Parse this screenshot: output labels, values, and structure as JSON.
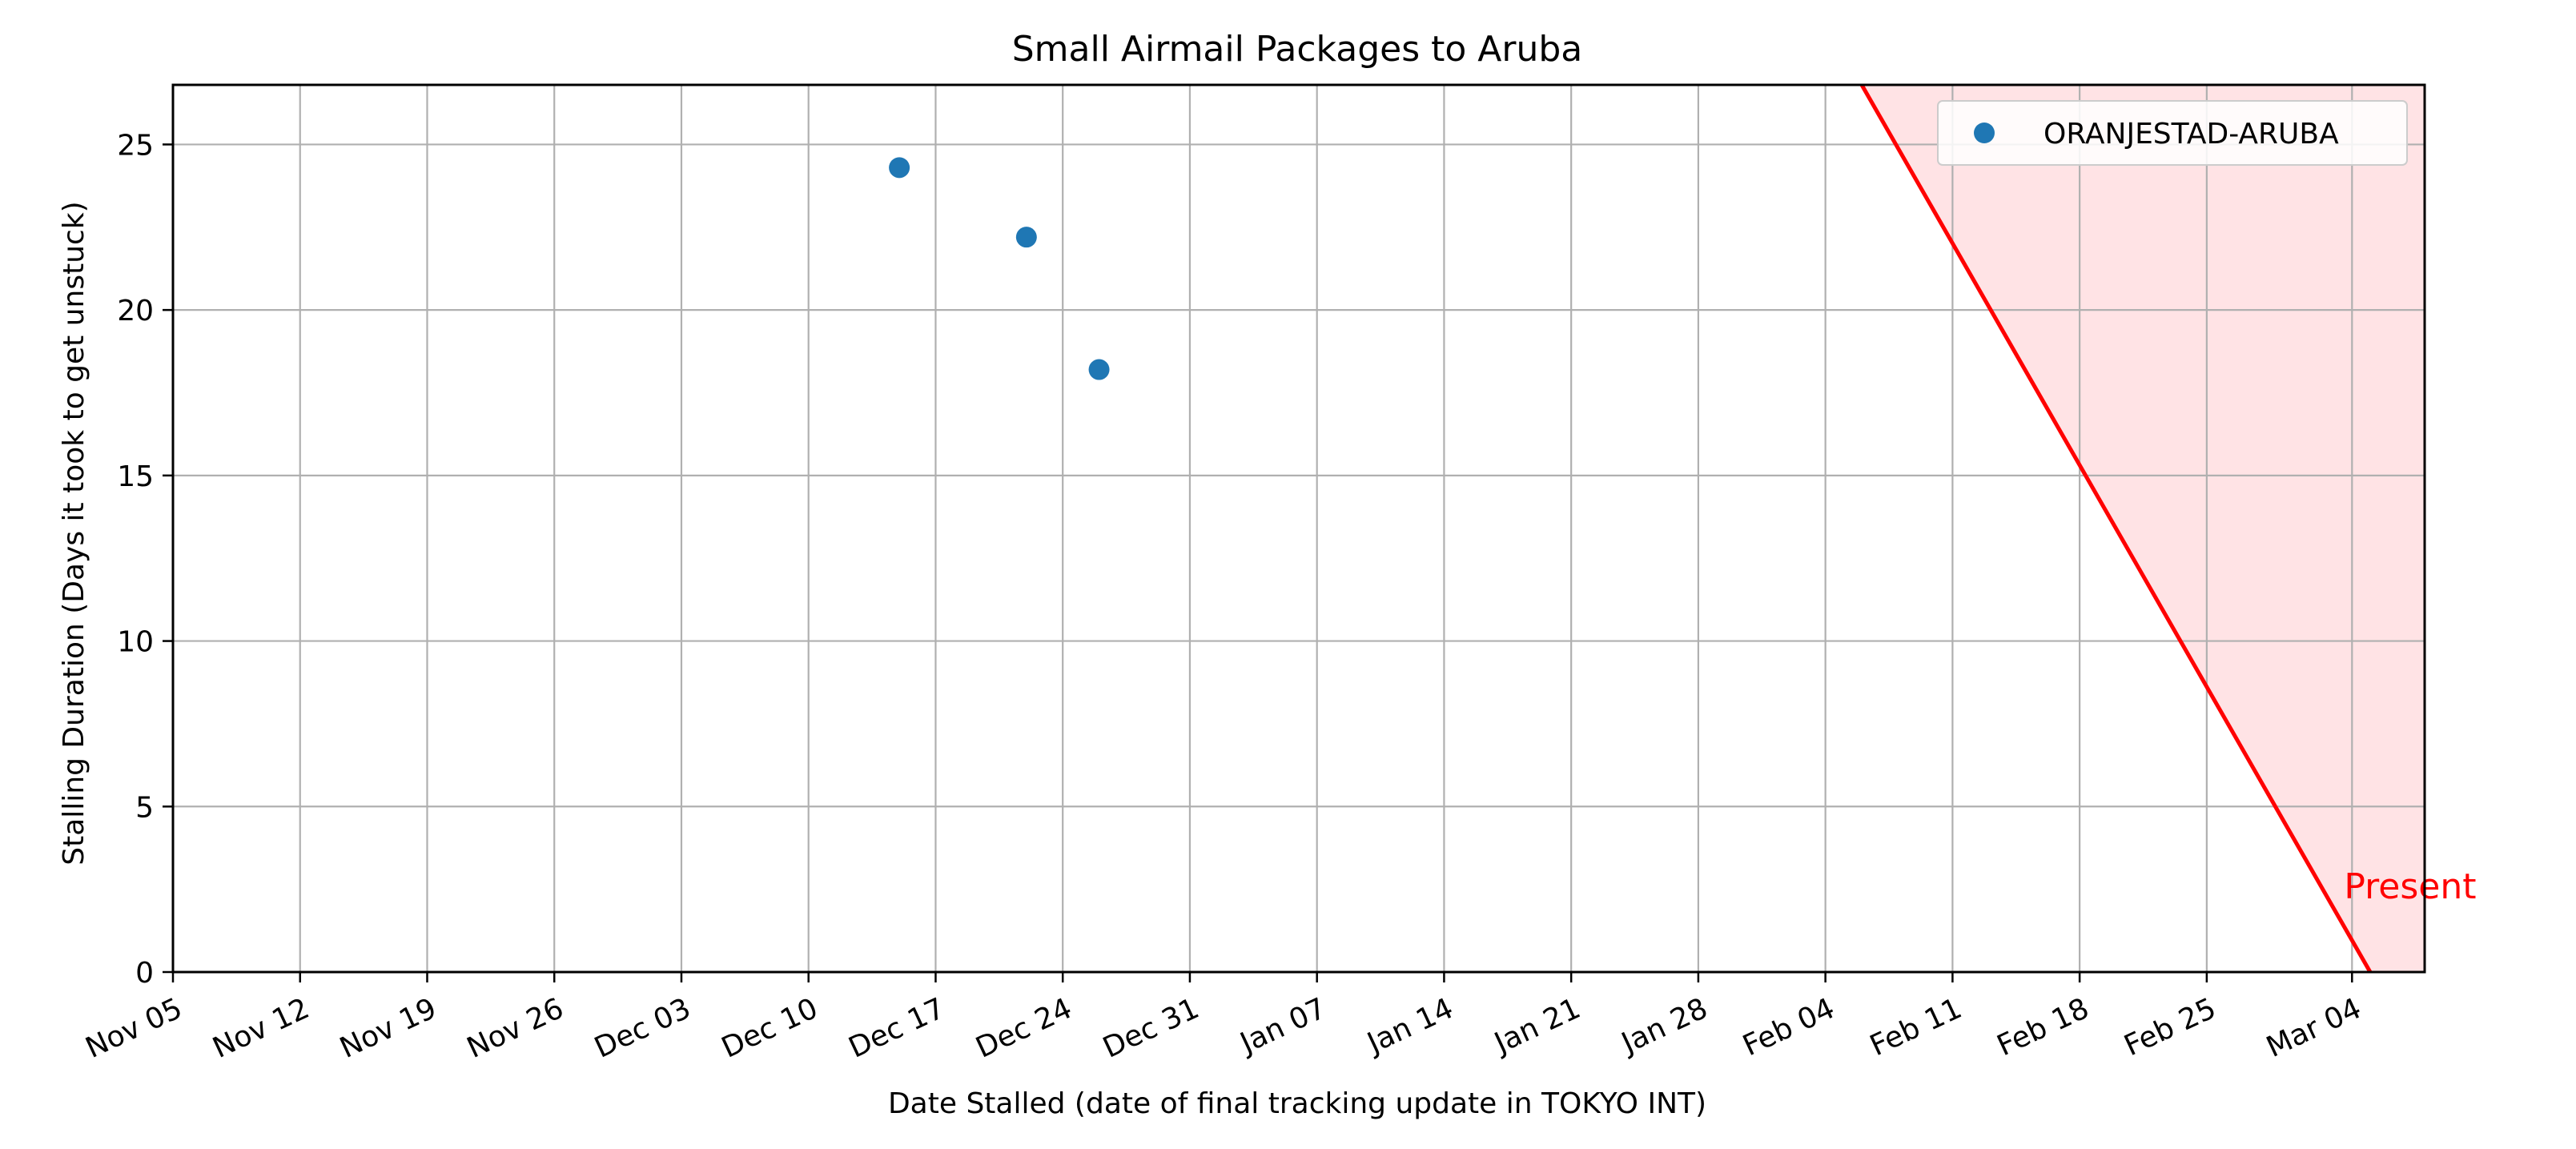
{
  "chart_data": {
    "type": "scatter",
    "title": "Small Airmail Packages to Aruba",
    "xlabel": "Date Stalled (date of final tracking update in TOKYO INT)",
    "ylabel": "Stalling Duration (Days it took to get unstuck)",
    "x_axis_type": "date",
    "xlim": [
      "2023-11-05",
      "2024-03-08"
    ],
    "ylim": [
      0,
      26.8
    ],
    "x_tick_dates": [
      "2023-11-05",
      "2023-11-12",
      "2023-11-19",
      "2023-11-26",
      "2023-12-03",
      "2023-12-10",
      "2023-12-17",
      "2023-12-24",
      "2023-12-31",
      "2024-01-07",
      "2024-01-14",
      "2024-01-21",
      "2024-01-28",
      "2024-02-04",
      "2024-02-11",
      "2024-02-18",
      "2024-02-25",
      "2024-03-04"
    ],
    "x_tick_labels": [
      "Nov 05",
      "Nov 12",
      "Nov 19",
      "Nov 26",
      "Dec 03",
      "Dec 10",
      "Dec 17",
      "Dec 24",
      "Dec 31",
      "Jan 07",
      "Jan 14",
      "Jan 21",
      "Jan 28",
      "Feb 04",
      "Feb 11",
      "Feb 18",
      "Feb 25",
      "Mar 04"
    ],
    "y_ticks": [
      0,
      5,
      10,
      15,
      20,
      25
    ],
    "y_tick_labels": [
      "0",
      "5",
      "10",
      "15",
      "20",
      "25"
    ],
    "grid": true,
    "legend_position": "top-right",
    "series": [
      {
        "name": "ORANJESTAD-ARUBA",
        "color": "#1f77b4",
        "marker": "circle",
        "points": [
          {
            "x": "2023-12-15",
            "y": 24.3
          },
          {
            "x": "2023-12-22",
            "y": 22.2
          },
          {
            "x": "2023-12-26",
            "y": 18.2
          }
        ]
      }
    ],
    "present_line": {
      "label": "Present",
      "color": "#ff0000",
      "fill_color": "#ffc0c5",
      "from": {
        "x": "2024-02-06",
        "y": 26.8
      },
      "to": {
        "x": "2024-03-05",
        "y": 0
      }
    }
  }
}
